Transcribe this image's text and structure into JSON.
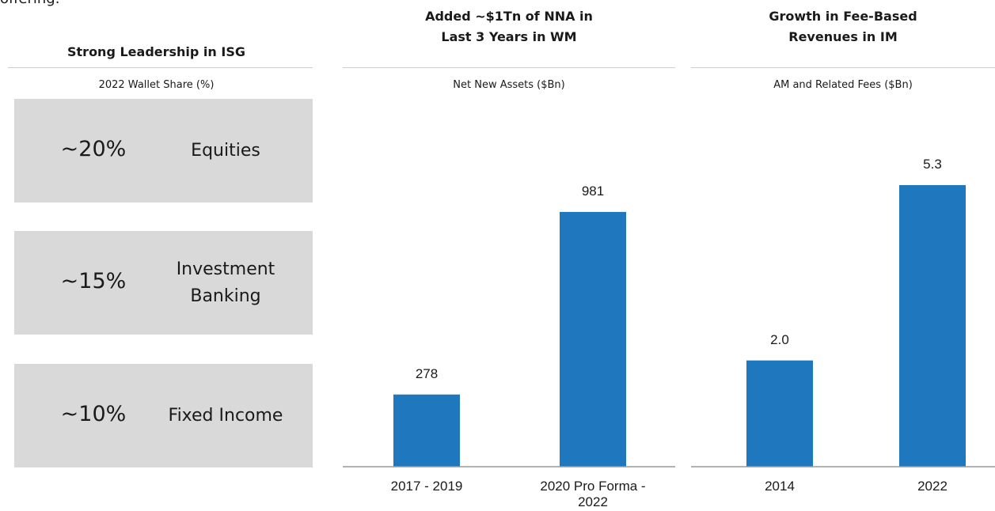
{
  "intro_fragment": "offering.",
  "leadership": {
    "title": "Strong Leadership in ISG",
    "subtitle": "2022 Wallet Share (%)",
    "items": [
      {
        "share": "~20%",
        "label": "Equities"
      },
      {
        "share": "~15%",
        "label": "Investment Banking"
      },
      {
        "share": "~10%",
        "label": "Fixed Income"
      }
    ]
  },
  "chart_data": [
    {
      "type": "bar",
      "title": "Added ~$1Tn of NNA in Last 3 Years in WM",
      "subtitle": "Net New Assets ($Bn)",
      "categories": [
        "2017 - 2019",
        "2020 Pro Forma - 2022"
      ],
      "values": [
        278,
        981
      ],
      "color": "#1f78be",
      "ylim": [
        0,
        1200
      ]
    },
    {
      "type": "bar",
      "title": "Growth in Fee-Based Revenues in IM",
      "subtitle": "AM and Related Fees ($Bn)",
      "categories": [
        "2014",
        "2022"
      ],
      "values": [
        2.0,
        5.3
      ],
      "value_labels": [
        "2.0",
        "5.3"
      ],
      "color": "#1f78be",
      "ylim": [
        0,
        6
      ]
    }
  ]
}
